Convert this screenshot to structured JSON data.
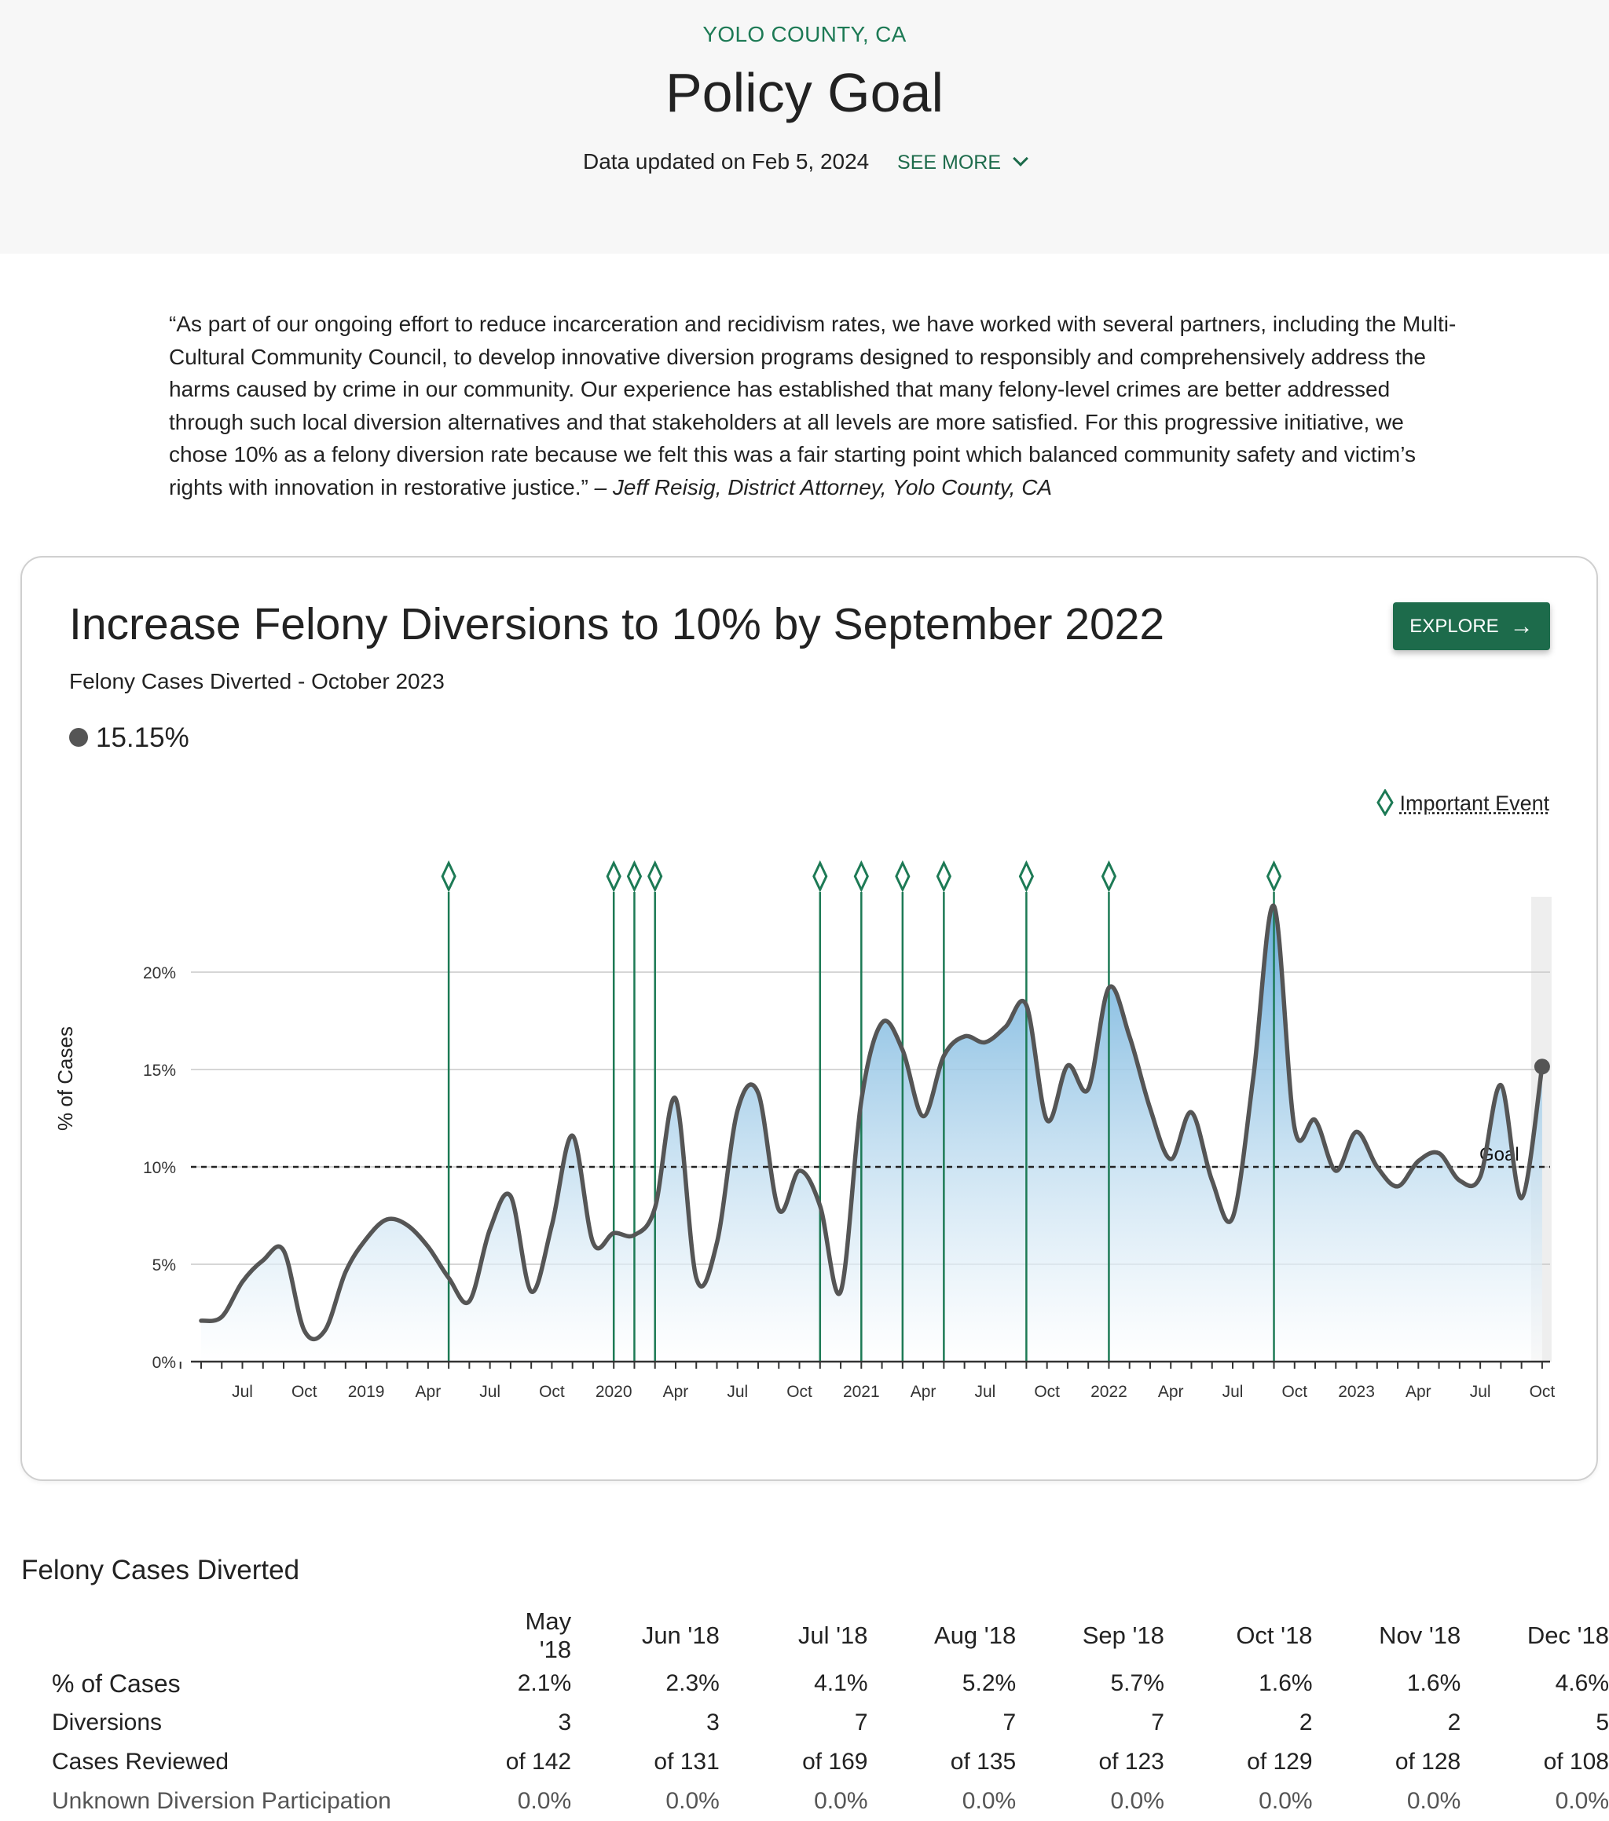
{
  "header": {
    "place": "YOLO COUNTY, CA",
    "title": "Policy Goal",
    "updated": "Data updated on Feb 5, 2024",
    "see_more": "SEE MORE"
  },
  "quote": {
    "text": "“As part of our ongoing effort to reduce incarceration and recidivism rates, we have worked with several partners, including the Multi-Cultural Community Council, to develop innovative diversion programs designed to responsibly and comprehensively address the harms caused by crime in our community. Our experience has established that many felony-level crimes are better addressed through such local diversion alternatives and that stakeholders at all levels are more satisfied. For this progressive initiative, we chose 10% as a felony diversion rate because we felt this was a fair starting point which balanced community safety and victim’s rights with innovation in restorative justice.”",
    "attribution": " – Jeff Reisig, District Attorney, Yolo County, CA"
  },
  "card": {
    "title": "Increase Felony Diversions to 10% by September 2022",
    "subtitle": "Felony Cases Diverted - October 2023",
    "current_value": "15.15%",
    "explore_label": "EXPLORE",
    "legend_label": "Important Event"
  },
  "chart_data": {
    "type": "area",
    "ylabel": "% of Cases",
    "ylim": [
      0,
      24
    ],
    "yticks": [
      "0%",
      "5%",
      "10%",
      "15%",
      "20%"
    ],
    "ytick_values": [
      0,
      5,
      10,
      15,
      20
    ],
    "goal": 10,
    "goal_label": "Goal",
    "x": [
      "2018-05",
      "2018-06",
      "2018-07",
      "2018-08",
      "2018-09",
      "2018-10",
      "2018-11",
      "2018-12",
      "2019-01",
      "2019-02",
      "2019-03",
      "2019-04",
      "2019-05",
      "2019-06",
      "2019-07",
      "2019-08",
      "2019-09",
      "2019-10",
      "2019-11",
      "2019-12",
      "2020-01",
      "2020-02",
      "2020-03",
      "2020-04",
      "2020-05",
      "2020-06",
      "2020-07",
      "2020-08",
      "2020-09",
      "2020-10",
      "2020-11",
      "2020-12",
      "2021-01",
      "2021-02",
      "2021-03",
      "2021-04",
      "2021-05",
      "2021-06",
      "2021-07",
      "2021-08",
      "2021-09",
      "2021-10",
      "2021-11",
      "2021-12",
      "2022-01",
      "2022-02",
      "2022-03",
      "2022-04",
      "2022-05",
      "2022-06",
      "2022-07",
      "2022-08",
      "2022-09",
      "2022-10",
      "2022-11",
      "2022-12",
      "2023-01",
      "2023-02",
      "2023-03",
      "2023-04",
      "2023-05",
      "2023-06",
      "2023-07",
      "2023-08",
      "2023-09",
      "2023-10"
    ],
    "values": [
      2.1,
      2.3,
      4.1,
      5.2,
      5.7,
      1.6,
      1.6,
      4.6,
      6.3,
      7.3,
      7.0,
      5.9,
      4.3,
      3.1,
      6.8,
      8.5,
      3.6,
      7.0,
      11.6,
      6.1,
      6.6,
      6.5,
      7.9,
      13.5,
      4.3,
      6.1,
      12.9,
      13.8,
      7.8,
      9.8,
      8.0,
      3.6,
      13.4,
      17.4,
      16.0,
      12.6,
      15.7,
      16.7,
      16.4,
      17.2,
      18.3,
      12.4,
      15.2,
      14.0,
      19.2,
      16.7,
      13.0,
      10.4,
      12.8,
      9.3,
      7.4,
      14.6,
      23.4,
      12.0,
      12.4,
      9.8,
      11.8,
      10.0,
      9.0,
      10.3,
      10.7,
      9.3,
      9.5,
      14.2,
      8.4,
      15.15
    ],
    "xtick_labels": [
      "Jul",
      "Oct",
      "2019",
      "Apr",
      "Jul",
      "Oct",
      "2020",
      "Apr",
      "Jul",
      "Oct",
      "2021",
      "Apr",
      "Jul",
      "Oct",
      "2022",
      "Apr",
      "Jul",
      "Oct",
      "2023",
      "Apr",
      "Jul",
      "Oct"
    ],
    "xtick_months": [
      "2018-07",
      "2018-10",
      "2019-01",
      "2019-04",
      "2019-07",
      "2019-10",
      "2020-01",
      "2020-04",
      "2020-07",
      "2020-10",
      "2021-01",
      "2021-04",
      "2021-07",
      "2021-10",
      "2022-01",
      "2022-04",
      "2022-07",
      "2022-10",
      "2023-01",
      "2023-04",
      "2023-07",
      "2023-10"
    ],
    "events": [
      "2019-05",
      "2020-01",
      "2020-02",
      "2020-03",
      "2020-11",
      "2021-01",
      "2021-03",
      "2021-05",
      "2021-09",
      "2022-01",
      "2022-09"
    ],
    "grid": true,
    "colors": {
      "line": "#555555",
      "area_top": "#6aaedb",
      "event": "#1d7a55",
      "goal": "#222222",
      "highlight": "#eeeeee"
    }
  },
  "table": {
    "title": "Felony Cases Diverted",
    "columns": [
      "May '18",
      "Jun '18",
      "Jul '18",
      "Aug '18",
      "Sep '18",
      "Oct '18",
      "Nov '18",
      "Dec '18"
    ],
    "rows": [
      {
        "label": "% of Cases",
        "values": [
          "2.1%",
          "2.3%",
          "4.1%",
          "5.2%",
          "5.7%",
          "1.6%",
          "1.6%",
          "4.6%"
        ]
      },
      {
        "label": "Diversions",
        "values": [
          "3",
          "3",
          "7",
          "7",
          "7",
          "2",
          "2",
          "5"
        ]
      },
      {
        "label": "Cases Reviewed",
        "values": [
          "of 142",
          "of 131",
          "of 169",
          "of 135",
          "of 123",
          "of 129",
          "of 128",
          "of 108"
        ]
      },
      {
        "label": "Unknown Diversion Participation",
        "values": [
          "0.0%",
          "0.0%",
          "0.0%",
          "0.0%",
          "0.0%",
          "0.0%",
          "0.0%",
          "0.0%"
        ]
      }
    ]
  }
}
